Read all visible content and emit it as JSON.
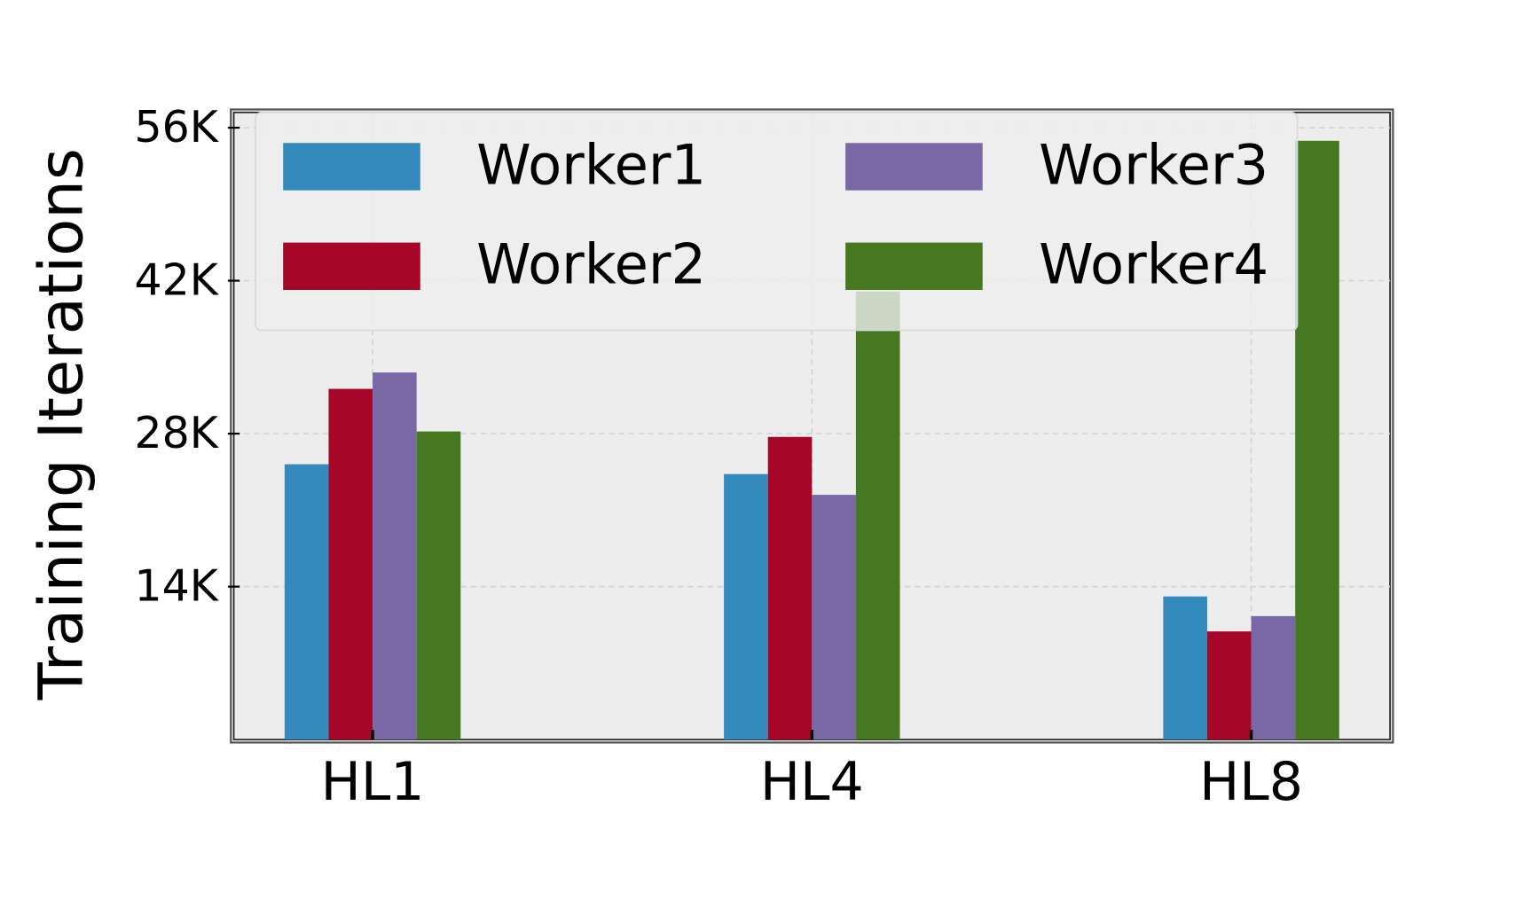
{
  "chart_data": {
    "type": "bar",
    "y_label": "Training Iterations",
    "categories": [
      "HL1",
      "HL4",
      "HL8"
    ],
    "series": [
      {
        "name": "Worker1",
        "color": "#348abd",
        "values": [
          25200,
          24300,
          13100
        ]
      },
      {
        "name": "Worker2",
        "color": "#a60628",
        "values": [
          32100,
          27700,
          9900
        ]
      },
      {
        "name": "Worker3",
        "color": "#7a68a6",
        "values": [
          33600,
          22400,
          11300
        ]
      },
      {
        "name": "Worker4",
        "color": "#467821",
        "values": [
          28200,
          41000,
          54800
        ]
      }
    ],
    "ylim": [
      0,
      57400
    ],
    "yticks": [
      {
        "value": 14000,
        "label": "14K"
      },
      {
        "value": 28000,
        "label": "28K"
      },
      {
        "value": 42000,
        "label": "42K"
      },
      {
        "value": 56000,
        "label": "56K"
      }
    ],
    "grid": true,
    "legend": "upper"
  }
}
